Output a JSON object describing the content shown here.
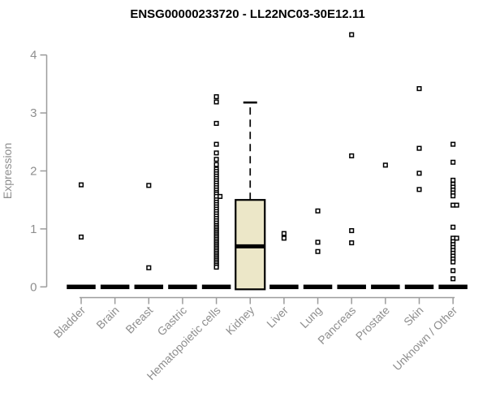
{
  "chart_data": {
    "type": "boxplot",
    "title": "ENSG00000233720 - LL22NC03-30E12.11",
    "xlabel": "",
    "ylabel": "Expression",
    "ylim": [
      0,
      4.4
    ],
    "yticks": [
      0,
      1,
      2,
      3,
      4
    ],
    "grid": false,
    "legend": "none",
    "categories": [
      "Bladder",
      "Brain",
      "Breast",
      "Gastric",
      "Hematopoietic cells",
      "Kidney",
      "Liver",
      "Lung",
      "Pancreas",
      "Prostate",
      "Skin",
      "Unknown / Other"
    ],
    "series": [
      {
        "category": "Bladder",
        "box": {
          "q1": 0,
          "median": 0,
          "q3": 0,
          "whisker_low": 0,
          "whisker_high": 0
        },
        "outliers": [
          1.76,
          0.86
        ]
      },
      {
        "category": "Brain",
        "box": {
          "q1": 0,
          "median": 0,
          "q3": 0,
          "whisker_low": 0,
          "whisker_high": 0
        },
        "outliers": []
      },
      {
        "category": "Breast",
        "box": {
          "q1": 0,
          "median": 0,
          "q3": 0,
          "whisker_low": 0,
          "whisker_high": 0
        },
        "outliers": [
          1.75,
          0.33
        ]
      },
      {
        "category": "Gastric",
        "box": {
          "q1": 0,
          "median": 0,
          "q3": 0,
          "whisker_low": 0,
          "whisker_high": 0
        },
        "outliers": []
      },
      {
        "category": "Hematopoietic cells",
        "box": {
          "q1": 0,
          "median": 0,
          "q3": 0,
          "whisker_low": 0,
          "whisker_high": 0
        },
        "outliers": [
          3.28,
          3.19,
          2.82,
          2.46,
          2.31,
          2.2,
          2.11,
          2.03,
          1.99,
          1.95,
          1.91,
          1.87,
          1.83,
          1.79,
          1.75,
          1.71,
          1.67,
          1.63,
          1.6,
          1.56,
          1.56,
          1.5,
          1.46,
          1.42,
          1.38,
          1.34,
          1.3,
          1.26,
          1.22,
          1.18,
          1.14,
          1.1,
          1.06,
          1.03,
          1.0,
          0.97,
          0.94,
          0.91,
          0.88,
          0.85,
          0.82,
          0.79,
          0.76,
          0.73,
          0.7,
          0.67,
          0.64,
          0.61,
          0.58,
          0.55,
          0.52,
          0.49,
          0.46,
          0.43,
          0.4,
          0.37,
          0.34
        ]
      },
      {
        "category": "Kidney",
        "box": {
          "q1": 0,
          "median": 0.7,
          "q3": 1.5,
          "whisker_low": 0,
          "whisker_high": 3.18
        },
        "outliers": []
      },
      {
        "category": "Liver",
        "box": {
          "q1": 0,
          "median": 0,
          "q3": 0,
          "whisker_low": 0,
          "whisker_high": 0
        },
        "outliers": [
          0.92,
          0.84
        ]
      },
      {
        "category": "Lung",
        "box": {
          "q1": 0,
          "median": 0,
          "q3": 0,
          "whisker_low": 0,
          "whisker_high": 0
        },
        "outliers": [
          1.31,
          0.77,
          0.61
        ]
      },
      {
        "category": "Pancreas",
        "box": {
          "q1": 0,
          "median": 0,
          "q3": 0,
          "whisker_low": 0,
          "whisker_high": 0
        },
        "outliers": [
          4.35,
          2.26,
          0.97,
          0.76
        ]
      },
      {
        "category": "Prostate",
        "box": {
          "q1": 0,
          "median": 0,
          "q3": 0,
          "whisker_low": 0,
          "whisker_high": 0
        },
        "outliers": [
          2.1
        ]
      },
      {
        "category": "Skin",
        "box": {
          "q1": 0,
          "median": 0,
          "q3": 0,
          "whisker_low": 0,
          "whisker_high": 0
        },
        "outliers": [
          3.42,
          2.39,
          1.96,
          1.68
        ]
      },
      {
        "category": "Unknown / Other",
        "box": {
          "q1": 0,
          "median": 0,
          "q3": 0,
          "whisker_low": 0,
          "whisker_high": 0
        },
        "outliers": [
          2.46,
          2.15,
          1.84,
          1.77,
          1.72,
          1.67,
          1.62,
          1.57,
          1.41,
          1.41,
          1.03,
          0.84,
          0.84,
          0.78,
          0.73,
          0.68,
          0.63,
          0.58,
          0.53,
          0.48,
          0.43,
          0.28,
          0.14
        ]
      }
    ],
    "colors": {
      "box_fill": "#ECE7C8",
      "box_border": "#000000",
      "median": "#000000",
      "outlier_stroke": "#000000",
      "outlier_fill": "#FFFFFF",
      "axis_line": "#9C9C9C",
      "axis_text": "#8E8E8E",
      "title_text": "#000000",
      "background": "#FFFFFF"
    }
  }
}
